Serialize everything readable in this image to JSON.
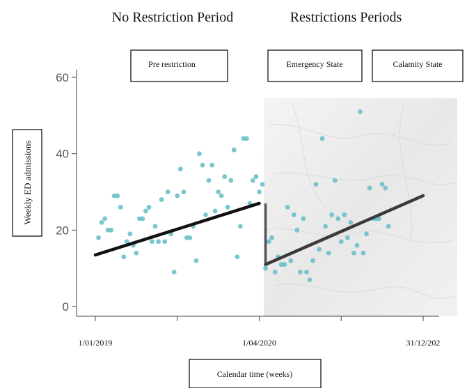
{
  "header": {
    "left_period": "No Restriction Period",
    "right_period": "Restrictions Periods"
  },
  "phase_labels": {
    "pre": "Pre restriction",
    "emergency": "Emergency State",
    "calamity": "Calamity State"
  },
  "colors": {
    "points": "#6cc0c8",
    "trend": "#111111",
    "shade": "#ececec"
  },
  "chart_data": {
    "type": "scatter",
    "xlabel": "Calendar time (weeks)",
    "ylabel": "Weekly ED admissions",
    "x_ticks": [
      "1/01/2019",
      "1/04/2020",
      "31/12/202"
    ],
    "y_ticks": [
      "0",
      "20",
      "40",
      "60"
    ],
    "ylim": [
      0,
      60
    ],
    "xlim_weeks": [
      0,
      104
    ],
    "grid": false,
    "shaded_region_start_week": 52,
    "points": [
      [
        1,
        18
      ],
      [
        2,
        22
      ],
      [
        3,
        23
      ],
      [
        4,
        20
      ],
      [
        5,
        20
      ],
      [
        6,
        29
      ],
      [
        7,
        29
      ],
      [
        8,
        26
      ],
      [
        9,
        13
      ],
      [
        10,
        17
      ],
      [
        11,
        19
      ],
      [
        12,
        16
      ],
      [
        13,
        14
      ],
      [
        14,
        23
      ],
      [
        15,
        23
      ],
      [
        16,
        25
      ],
      [
        17,
        26
      ],
      [
        18,
        17
      ],
      [
        19,
        21
      ],
      [
        20,
        17
      ],
      [
        21,
        28
      ],
      [
        22,
        17
      ],
      [
        23,
        30
      ],
      [
        24,
        19
      ],
      [
        25,
        9
      ],
      [
        26,
        29
      ],
      [
        27,
        36
      ],
      [
        28,
        30
      ],
      [
        29,
        18
      ],
      [
        30,
        18
      ],
      [
        31,
        21
      ],
      [
        32,
        12
      ],
      [
        33,
        40
      ],
      [
        34,
        37
      ],
      [
        35,
        24
      ],
      [
        36,
        33
      ],
      [
        37,
        37
      ],
      [
        38,
        25
      ],
      [
        39,
        30
      ],
      [
        40,
        29
      ],
      [
        41,
        34
      ],
      [
        42,
        26
      ],
      [
        43,
        33
      ],
      [
        44,
        41
      ],
      [
        45,
        13
      ],
      [
        46,
        21
      ],
      [
        47,
        44
      ],
      [
        48,
        44
      ],
      [
        49,
        27
      ],
      [
        50,
        33
      ],
      [
        51,
        34
      ],
      [
        52,
        30
      ],
      [
        53,
        32
      ],
      [
        54,
        10
      ],
      [
        55,
        17
      ],
      [
        56,
        18
      ],
      [
        57,
        9
      ],
      [
        58,
        13
      ],
      [
        59,
        11
      ],
      [
        60,
        11
      ],
      [
        61,
        26
      ],
      [
        62,
        12
      ],
      [
        63,
        24
      ],
      [
        64,
        20
      ],
      [
        65,
        9
      ],
      [
        66,
        23
      ],
      [
        67,
        9
      ],
      [
        68,
        7
      ],
      [
        69,
        12
      ],
      [
        70,
        32
      ],
      [
        71,
        15
      ],
      [
        72,
        44
      ],
      [
        73,
        21
      ],
      [
        74,
        14
      ],
      [
        75,
        24
      ],
      [
        76,
        33
      ],
      [
        77,
        23
      ],
      [
        78,
        17
      ],
      [
        79,
        24
      ],
      [
        80,
        18
      ],
      [
        81,
        22
      ],
      [
        82,
        14
      ],
      [
        83,
        16
      ],
      [
        84,
        51
      ],
      [
        85,
        14
      ],
      [
        86,
        19
      ],
      [
        87,
        31
      ],
      [
        88,
        23
      ],
      [
        89,
        23
      ],
      [
        90,
        23
      ],
      [
        91,
        32
      ],
      [
        92,
        31
      ],
      [
        93,
        21
      ]
    ],
    "trend_segments": [
      {
        "label": "No Restriction Period",
        "x": [
          0,
          52
        ],
        "y": [
          13.5,
          27
        ]
      },
      {
        "label": "Restrictions Periods",
        "x": [
          54,
          104
        ],
        "y": [
          11,
          29
        ]
      }
    ],
    "step_drop_at_week": 54
  }
}
